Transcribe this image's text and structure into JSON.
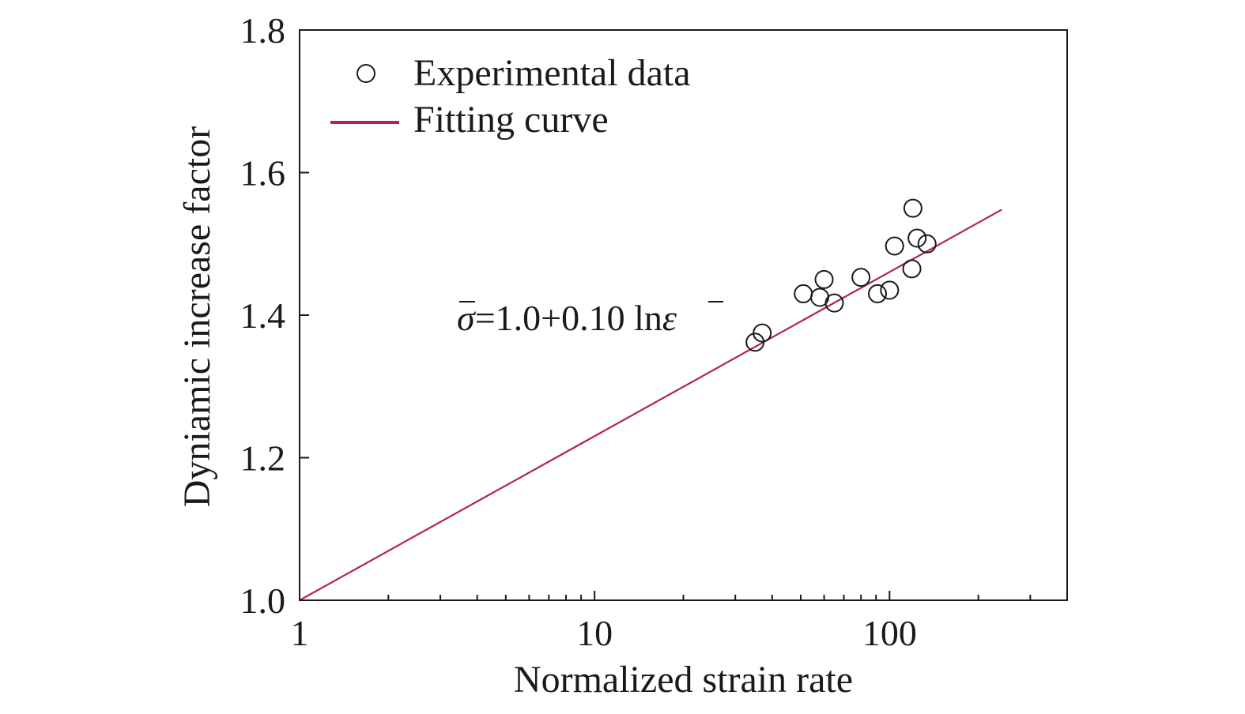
{
  "chart_data": {
    "type": "scatter",
    "xlabel": "Normalized strain rate",
    "ylabel": "Dyniamic increase factor",
    "x_scale": "log",
    "xlim": [
      1,
      400
    ],
    "ylim": [
      1.0,
      1.8
    ],
    "x_ticks": [
      1,
      10,
      100
    ],
    "x_tick_labels": [
      "1",
      "10",
      "100"
    ],
    "y_ticks": [
      1.0,
      1.2,
      1.4,
      1.6,
      1.8
    ],
    "y_tick_labels": [
      "1.0",
      "1.2",
      "1.4",
      "1.6",
      "1.8"
    ],
    "grid": false,
    "legend_position": "top-left",
    "annotation": {
      "sigma": "σ",
      "text": "=1.0+0.10 ln",
      "epsilon": "ε"
    },
    "series": [
      {
        "name": "Experimental data",
        "type": "scatter",
        "marker": "open-circle",
        "color": "#1a1a1a",
        "points": [
          {
            "x": 35,
            "y": 1.362
          },
          {
            "x": 37,
            "y": 1.375
          },
          {
            "x": 51,
            "y": 1.43
          },
          {
            "x": 58,
            "y": 1.425
          },
          {
            "x": 60,
            "y": 1.45
          },
          {
            "x": 65,
            "y": 1.417
          },
          {
            "x": 80,
            "y": 1.453
          },
          {
            "x": 91,
            "y": 1.43
          },
          {
            "x": 100,
            "y": 1.435
          },
          {
            "x": 104,
            "y": 1.497
          },
          {
            "x": 119,
            "y": 1.465
          },
          {
            "x": 120,
            "y": 1.55
          },
          {
            "x": 124,
            "y": 1.508
          },
          {
            "x": 134,
            "y": 1.5
          }
        ]
      },
      {
        "name": "Fitting curve",
        "type": "line",
        "color": "#b5234a",
        "formula": "y = 1.0 + 0.10 ln(x)",
        "x_range": [
          1,
          240
        ],
        "points": [
          {
            "x": 1,
            "y": 1.0
          },
          {
            "x": 240,
            "y": 1.548
          }
        ]
      }
    ]
  }
}
